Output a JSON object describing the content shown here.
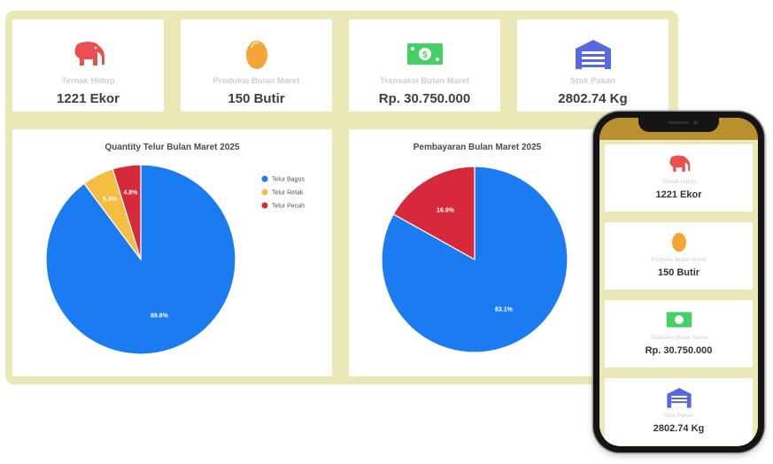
{
  "stats": [
    {
      "icon": "elephant-icon",
      "label": "Ternak Hidup",
      "value": "1221 Ekor",
      "color": "#e9504f"
    },
    {
      "icon": "egg-icon",
      "label": "Produksi Bulan Maret",
      "value": "150 Butir",
      "color": "#f5a533"
    },
    {
      "icon": "money-icon",
      "label": "Transaksi Bulan Maret",
      "value": "Rp. 30.750.000",
      "color": "#46cf65"
    },
    {
      "icon": "warehouse-icon",
      "label": "Stok Pakan",
      "value": "2802.74 Kg",
      "color": "#5768e0"
    }
  ],
  "chart_data": [
    {
      "type": "pie",
      "title": "Quantity Telur Bulan Maret 2025",
      "categories": [
        "Telur Bagus",
        "Telur Retak",
        "Telur Pecah"
      ],
      "values": [
        89.8,
        5.4,
        4.8
      ],
      "labels": [
        "89.8%",
        "5.4%",
        "4.8%"
      ],
      "colors": [
        "#1a7cf0",
        "#f5bd41",
        "#d7293c"
      ],
      "legend": "right"
    },
    {
      "type": "pie",
      "title": "Pembayaran Bulan Maret 2025",
      "categories": [
        "",
        ""
      ],
      "values": [
        83.1,
        16.9
      ],
      "labels": [
        "83.1%",
        "16.9%"
      ],
      "colors": [
        "#1a7cf0",
        "#d7293c"
      ],
      "legend": "none"
    }
  ],
  "mobile": {
    "topbar_color": "#b8902d"
  }
}
